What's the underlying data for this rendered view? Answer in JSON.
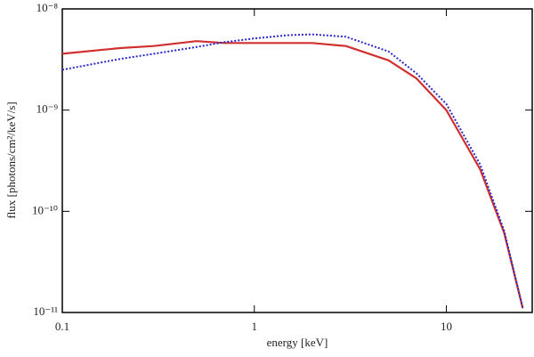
{
  "chart_data": {
    "type": "line",
    "xlabel": "energy [keV]",
    "ylabel": "flux [photons/cm²/keV/s]",
    "x": [
      0.1,
      0.2,
      0.3,
      0.5,
      0.7,
      1,
      1.5,
      2,
      3,
      5,
      7,
      10,
      15,
      20,
      25
    ],
    "series": [
      {
        "color": "#d03030",
        "style": "solid",
        "values": [
          3.6e-09,
          4.1e-09,
          4.3e-09,
          4.8e-09,
          4.6e-09,
          4.6e-09,
          4.6e-09,
          4.6e-09,
          4.3e-09,
          3.1e-09,
          2.05e-09,
          1e-09,
          2.6e-10,
          6.1e-11,
          1.1e-11
        ]
      },
      {
        "color": "#2828c8",
        "style": "dotted",
        "values": [
          2.5e-09,
          3.2e-09,
          3.6e-09,
          4.2e-09,
          4.7e-09,
          5.1e-09,
          5.5e-09,
          5.6e-09,
          5.3e-09,
          3.8e-09,
          2.3e-09,
          1.15e-09,
          2.9e-10,
          6.4e-11,
          1.1e-11
        ]
      }
    ],
    "xscale": "log",
    "yscale": "log",
    "xlim": [
      0.1,
      28
    ],
    "ylim": [
      1e-11,
      1e-08
    ],
    "xticks": [
      0.1,
      1,
      10
    ],
    "yticks": [
      {
        "value": 1e-11,
        "label": "10⁻¹¹"
      },
      {
        "value": 1e-10,
        "label": "10⁻¹⁰"
      },
      {
        "value": 1e-09,
        "label": "10⁻⁹"
      },
      {
        "value": 1e-08,
        "label": "10⁻⁸"
      }
    ]
  }
}
